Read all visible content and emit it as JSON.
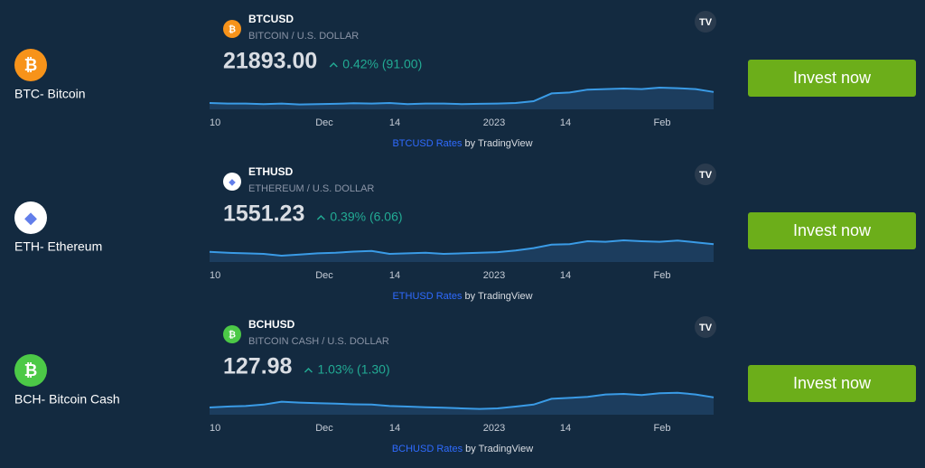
{
  "rows": [
    {
      "name": "BTC- Bitcoin",
      "symbol": "BTCUSD",
      "description": "BITCOIN / U.S. DOLLAR",
      "price": "21893.00",
      "change": "0.42% (91.00)",
      "icon_color": "#f7931a",
      "x_labels": [
        "10",
        "Dec",
        "14",
        "2023",
        "14",
        "Feb"
      ],
      "sparkline": [
        22,
        20,
        20,
        18,
        20,
        17,
        18,
        19,
        21,
        20,
        22,
        18,
        20,
        20,
        18,
        19,
        20,
        22,
        28,
        55,
        58,
        68,
        70,
        72,
        70,
        75,
        73,
        70,
        60
      ],
      "rates_link": "BTCUSD Rates",
      "by": "by TradingView",
      "button": "Invest now"
    },
    {
      "name": "ETH- Ethereum",
      "symbol": "ETHUSD",
      "description": "ETHEREUM / U.S. DOLLAR",
      "price": "1551.23",
      "change": "0.39% (6.06)",
      "icon_color": "#ffffff",
      "x_labels": [
        "10",
        "Dec",
        "14",
        "2023",
        "14",
        "Feb"
      ],
      "sparkline": [
        35,
        32,
        30,
        28,
        22,
        26,
        30,
        32,
        36,
        38,
        28,
        30,
        32,
        28,
        30,
        32,
        34,
        40,
        48,
        60,
        62,
        72,
        70,
        75,
        72,
        70,
        74,
        68,
        62
      ],
      "rates_link": "ETHUSD Rates",
      "by": "by TradingView",
      "button": "Invest now"
    },
    {
      "name": "BCH- Bitcoin Cash",
      "symbol": "BCHUSD",
      "description": "BITCOIN CASH / U.S. DOLLAR",
      "price": "127.98",
      "change": "1.03% (1.30)",
      "icon_color": "#4cc947",
      "x_labels": [
        "10",
        "Dec",
        "14",
        "2023",
        "14",
        "Feb"
      ],
      "sparkline": [
        25,
        28,
        30,
        35,
        45,
        42,
        40,
        38,
        36,
        35,
        30,
        28,
        26,
        24,
        22,
        20,
        22,
        28,
        35,
        55,
        58,
        62,
        70,
        72,
        68,
        74,
        76,
        70,
        60
      ],
      "rates_link": "BCHUSD Rates",
      "by": "by TradingView",
      "button": "Invest now"
    }
  ]
}
